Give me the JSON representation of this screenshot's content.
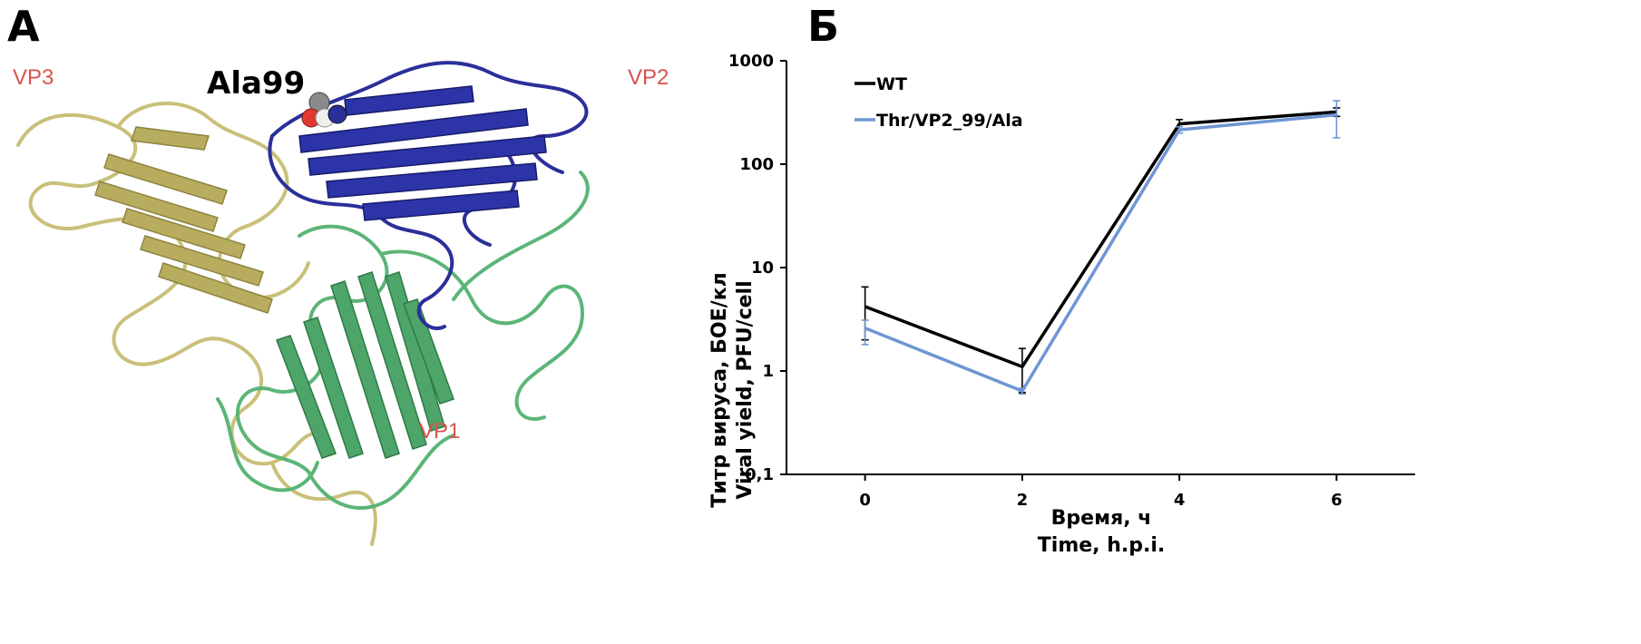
{
  "panel_a": {
    "letter": "А",
    "residue_label": "Ala99",
    "chains": [
      {
        "label": "VP3",
        "color": "#d9534f"
      },
      {
        "label": "VP2",
        "color": "#d9534f"
      },
      {
        "label": "VP1",
        "color": "#d9534f"
      }
    ],
    "colors": {
      "vp1": "#5cb578",
      "vp2": "#2a2f9a",
      "vp3": "#c9c07a"
    }
  },
  "panel_b": {
    "letter": "Б"
  },
  "chart_data": {
    "type": "line",
    "x": [
      0,
      2,
      4,
      6
    ],
    "xlabel_lines": [
      "Время, ч",
      "Time, h.p.i."
    ],
    "ylabel_lines": [
      "Титр вируса, БОЕ/кл",
      "Viral yield, PFU/cell"
    ],
    "y_scale": "log",
    "ylim": [
      0.1,
      1000
    ],
    "xlim": [
      -1,
      7
    ],
    "x_ticks": [
      "0",
      "2",
      "4",
      "6"
    ],
    "y_ticks": [
      "0,1",
      "1",
      "10",
      "100",
      "1000"
    ],
    "grid": false,
    "legend_position": "top-left",
    "series": [
      {
        "name": "WT",
        "color": "#000000",
        "values": [
          4.2,
          1.1,
          245,
          320
        ],
        "err_low": [
          2.0,
          0.62,
          215,
          290
        ],
        "err_high": [
          6.5,
          1.65,
          270,
          350
        ]
      },
      {
        "name": "Thr/VP2_99/Ala",
        "color": "#6f96d4",
        "values": [
          2.6,
          0.64,
          215,
          300
        ],
        "err_low": [
          1.8,
          0.6,
          200,
          180
        ],
        "err_high": [
          3.1,
          0.68,
          230,
          410
        ]
      }
    ]
  }
}
